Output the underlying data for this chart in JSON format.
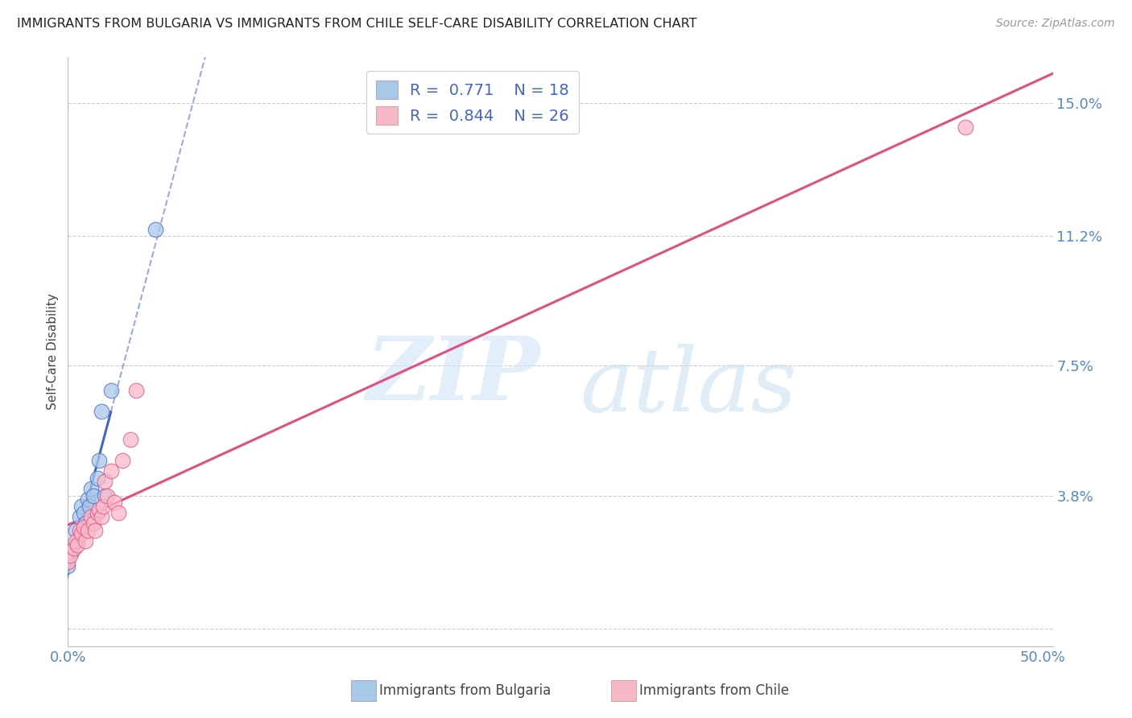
{
  "title": "IMMIGRANTS FROM BULGARIA VS IMMIGRANTS FROM CHILE SELF-CARE DISABILITY CORRELATION CHART",
  "source": "Source: ZipAtlas.com",
  "ylabel": "Self-Care Disability",
  "xlim": [
    0.0,
    0.505
  ],
  "ylim": [
    -0.005,
    0.163
  ],
  "y_ticks": [
    0.0,
    0.038,
    0.075,
    0.112,
    0.15
  ],
  "y_tick_labels": [
    "",
    "3.8%",
    "7.5%",
    "11.2%",
    "15.0%"
  ],
  "x_ticks": [
    0.0,
    0.5
  ],
  "x_tick_labels": [
    "0.0%",
    "50.0%"
  ],
  "legend_r1": "0.771",
  "legend_n1": "18",
  "legend_r2": "0.844",
  "legend_n2": "26",
  "color_bulgaria": "#a8c8e8",
  "color_chile": "#f8b8c8",
  "color_line_bulgaria": "#4466cc",
  "color_line_chile": "#e05080",
  "watermark_zip": "ZIP",
  "watermark_atlas": "atlas",
  "bulgaria_x": [
    0.0,
    0.002,
    0.004,
    0.005,
    0.006,
    0.007,
    0.008,
    0.009,
    0.01,
    0.011,
    0.012,
    0.013,
    0.015,
    0.016,
    0.017,
    0.019,
    0.022,
    0.045
  ],
  "bulgaria_y": [
    0.018,
    0.022,
    0.028,
    0.025,
    0.032,
    0.035,
    0.033,
    0.03,
    0.037,
    0.035,
    0.04,
    0.038,
    0.043,
    0.048,
    0.062,
    0.038,
    0.068,
    0.114
  ],
  "chile_x": [
    0.0,
    0.001,
    0.003,
    0.004,
    0.005,
    0.006,
    0.007,
    0.008,
    0.009,
    0.01,
    0.012,
    0.013,
    0.014,
    0.015,
    0.016,
    0.017,
    0.018,
    0.019,
    0.02,
    0.022,
    0.024,
    0.026,
    0.028,
    0.032,
    0.035,
    0.46
  ],
  "chile_y": [
    0.019,
    0.021,
    0.023,
    0.025,
    0.024,
    0.028,
    0.027,
    0.029,
    0.025,
    0.028,
    0.032,
    0.03,
    0.028,
    0.033,
    0.034,
    0.032,
    0.035,
    0.042,
    0.038,
    0.045,
    0.036,
    0.033,
    0.048,
    0.054,
    0.068,
    0.143
  ]
}
